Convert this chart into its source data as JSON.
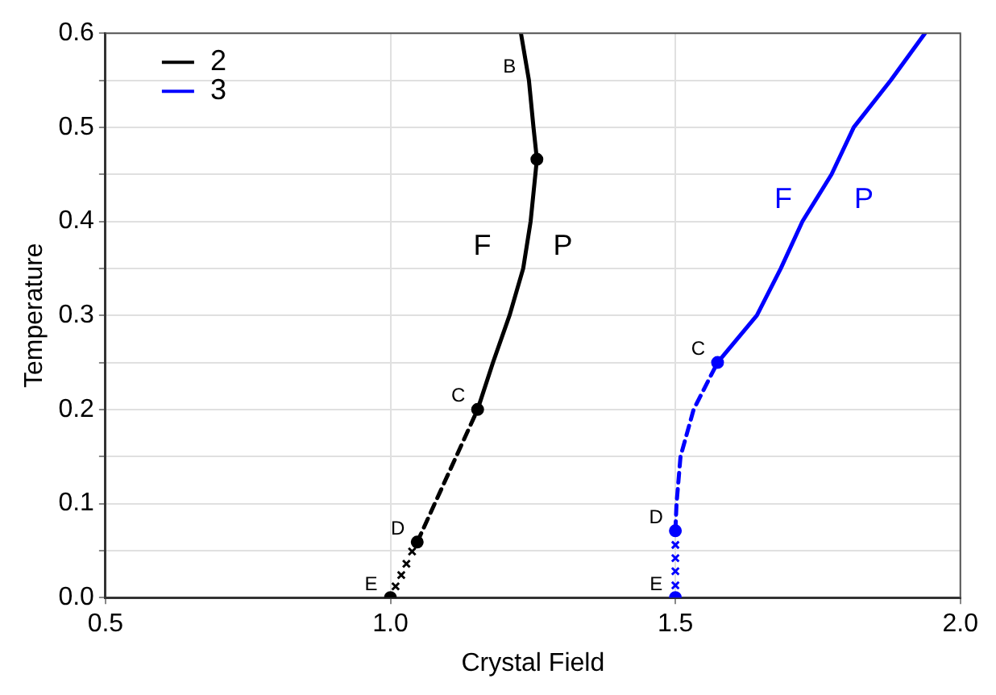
{
  "chart_data": {
    "type": "line",
    "xlabel": "Crystal Field",
    "ylabel": "Temperature",
    "xlim": [
      0.5,
      2.0
    ],
    "xticks": [
      0.5,
      {
        "value": 1.0,
        "label": "1.0"
      },
      1.5,
      {
        "value": 2.0,
        "label": "2.0"
      }
    ],
    "ylim": [
      0,
      0.6
    ],
    "yticks": [
      {
        "value": 0,
        "label": "0.0"
      },
      {
        "value": 0.05,
        "label": null
      },
      0.1,
      {
        "value": 0.15,
        "label": null
      },
      0.2,
      {
        "value": 0.25,
        "label": null
      },
      0.3,
      {
        "value": 0.35,
        "label": null
      },
      0.4,
      {
        "value": 0.45,
        "label": null
      },
      0.5,
      {
        "value": 0.55,
        "label": null
      },
      0.6
    ],
    "grid": true,
    "legend": "top left",
    "series": [
      {
        "name": "2",
        "color": "#000000",
        "line_style": "solid",
        "marker": "none",
        "x": [
          1.153,
          1.18,
          1.209,
          1.233,
          1.246,
          1.257,
          1.251,
          1.243,
          1.229
        ],
        "values": [
          0.2,
          0.25,
          0.3,
          0.35,
          0.4,
          0.466,
          0.5,
          0.55,
          0.6
        ]
      },
      {
        "color": "#000000",
        "line_style": "dashed",
        "marker": "none",
        "x": [
          1.047,
          1.153
        ],
        "values": [
          0.059,
          0.2
        ]
      },
      {
        "color": "#000000",
        "type": "scatter",
        "marker": "cross",
        "x": [
          1.009,
          1.019,
          1.028,
          1.038
        ],
        "values": [
          0.012,
          0.024,
          0.036,
          0.049
        ]
      },
      {
        "color": "#000000",
        "type": "scatter",
        "marker": "circle",
        "x": [
          1.0,
          1.047,
          1.153,
          1.257
        ],
        "values": [
          0,
          0.059,
          0.2,
          0.466
        ]
      },
      {
        "name": "3",
        "color": "#0000ff",
        "line_style": "solid",
        "marker": "none",
        "x": [
          1.574,
          1.643,
          1.685,
          1.723,
          1.774,
          1.813,
          1.878,
          1.938
        ],
        "values": [
          0.25,
          0.3,
          0.35,
          0.4,
          0.45,
          0.5,
          0.55,
          0.6
        ]
      },
      {
        "color": "#0000ff",
        "line_style": "dashed",
        "marker": "none",
        "x": [
          1.5,
          1.502,
          1.509,
          1.532,
          1.574
        ],
        "values": [
          0.071,
          0.1,
          0.15,
          0.2,
          0.25
        ]
      },
      {
        "color": "#0000ff",
        "type": "scatter",
        "marker": "cross",
        "x": [
          1.5,
          1.5,
          1.5,
          1.5
        ],
        "values": [
          0.013,
          0.028,
          0.042,
          0.056
        ]
      },
      {
        "color": "#0000ff",
        "type": "scatter",
        "marker": "circle",
        "x": [
          1.5,
          1.5,
          1.574
        ],
        "values": [
          0,
          0.071,
          0.25
        ]
      }
    ],
    "annotations": [
      {
        "text": "B",
        "x": 1.243,
        "y": 0.55
      },
      {
        "text": "C",
        "x": 1.153,
        "y": 0.2
      },
      {
        "text": "D",
        "x": 1.047,
        "y": 0.059
      },
      {
        "text": "E",
        "x": 1.0,
        "y": 0
      },
      {
        "text": "C",
        "x": 1.574,
        "y": 0.25
      },
      {
        "text": "D",
        "x": 1.5,
        "y": 0.071
      },
      {
        "text": "E",
        "x": 1.5,
        "y": 0
      },
      "F",
      "P",
      "F",
      "P"
    ]
  }
}
